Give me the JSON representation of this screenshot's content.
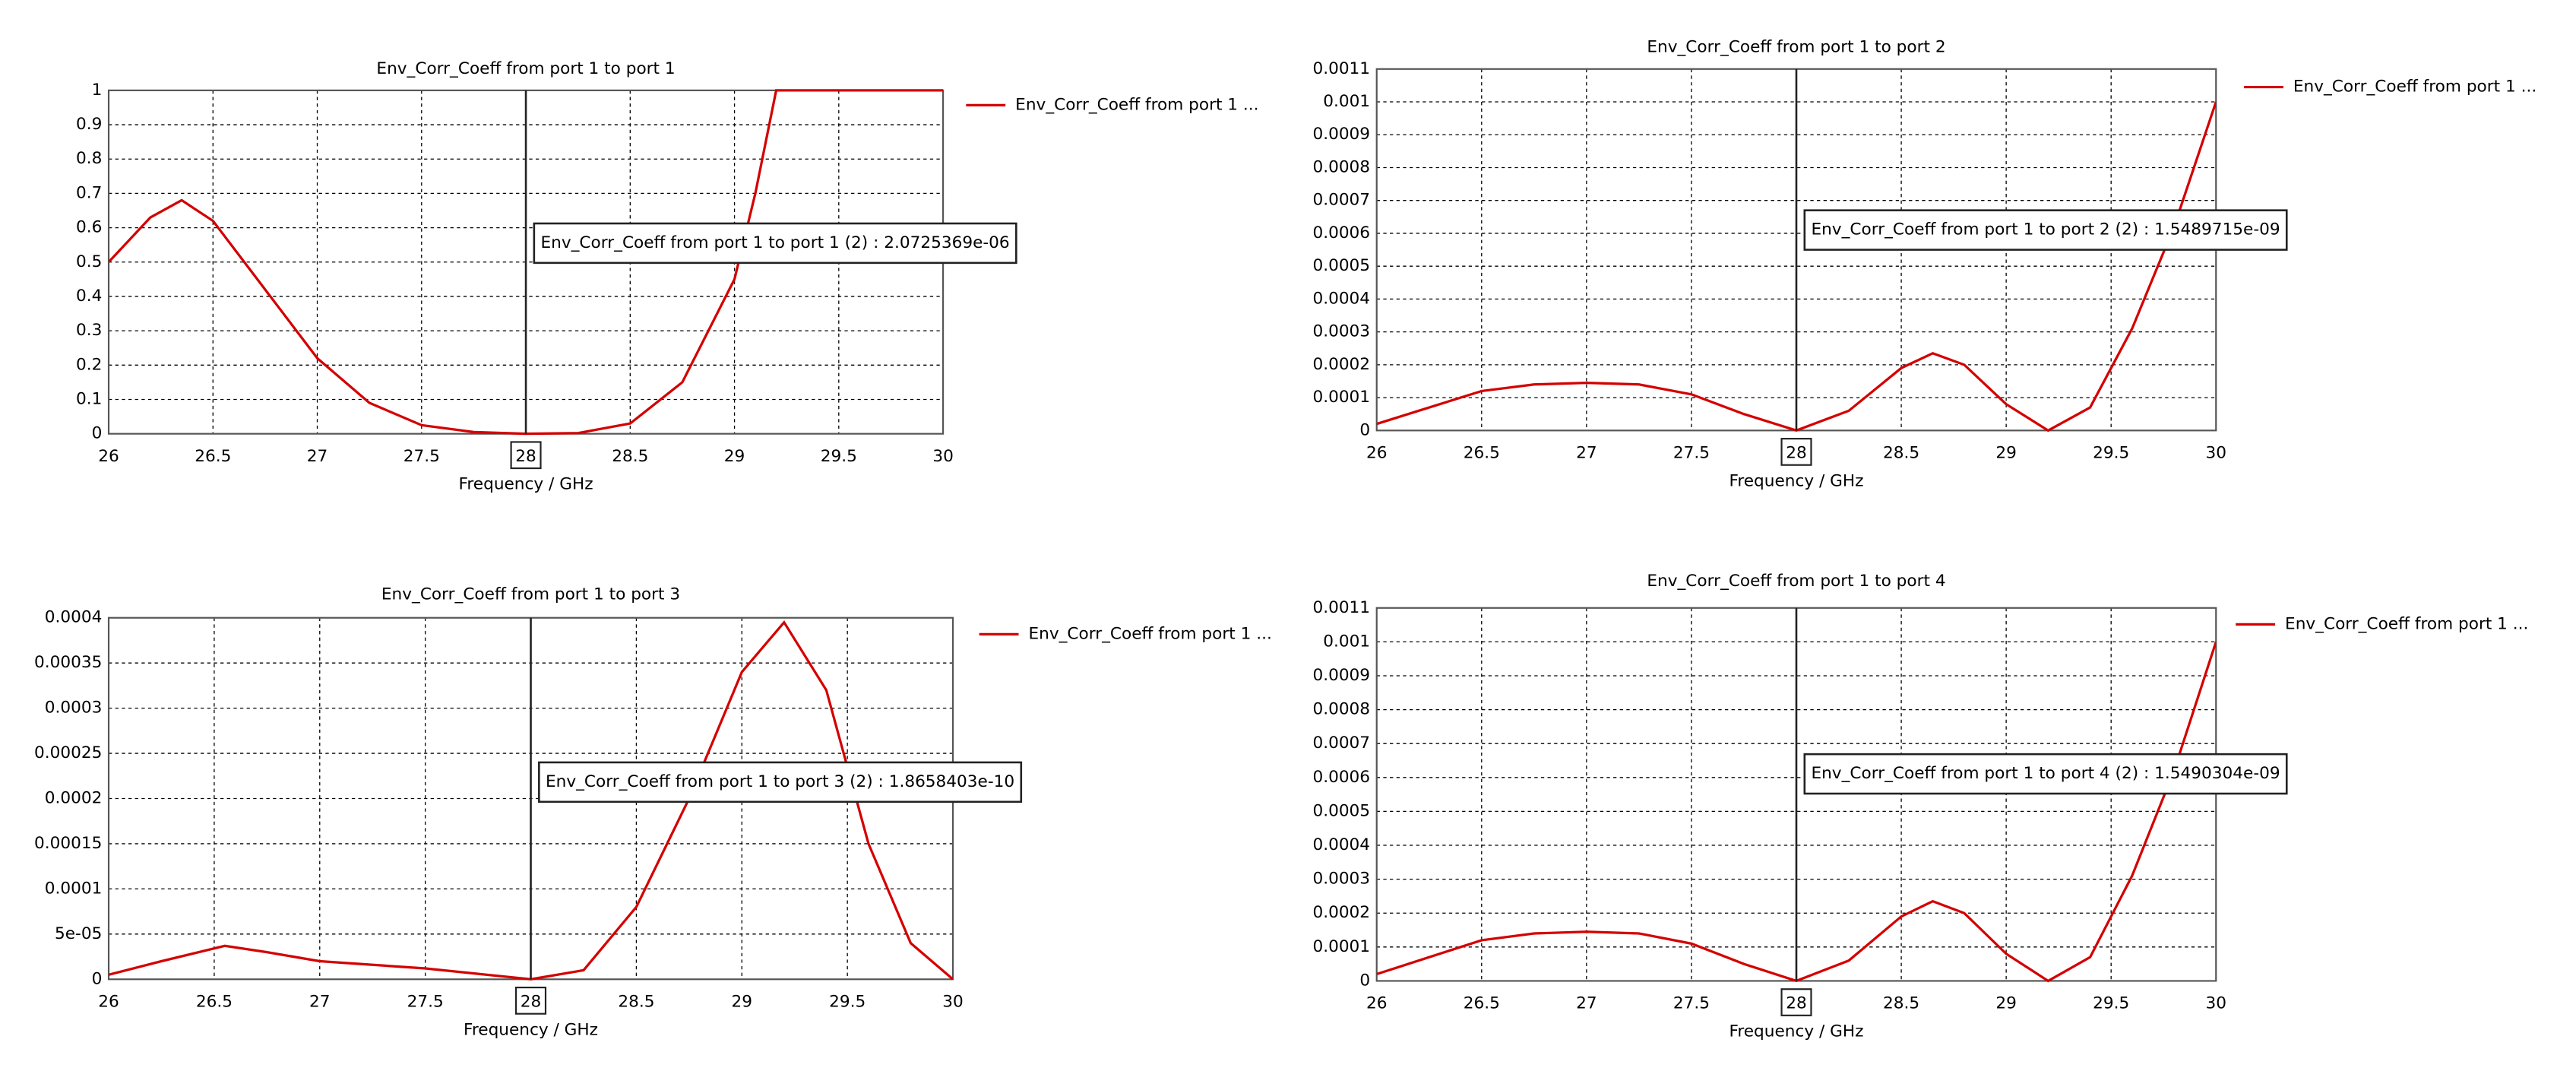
{
  "chart_data": [
    {
      "type": "line",
      "title": "Env_Corr_Coeff from port 1 to port 1",
      "x_label": "Frequency / GHz",
      "grid": true,
      "xlim": [
        26,
        30
      ],
      "xticks": [
        26,
        26.5,
        27,
        27.5,
        28,
        28.5,
        29,
        29.5,
        30
      ],
      "ylim": [
        0,
        1
      ],
      "yticks": [
        0,
        0.1,
        0.2,
        0.3,
        0.4,
        0.5,
        0.6,
        0.7,
        0.8,
        0.9,
        1
      ],
      "x": [
        26,
        26.2,
        26.35,
        26.5,
        26.75,
        27,
        27.25,
        27.5,
        27.75,
        28,
        28.25,
        28.5,
        28.75,
        29,
        29.1,
        29.2,
        29.5,
        30
      ],
      "series": [
        {
          "name": "Env_Corr_Coeff from port 1 ...",
          "color": "#d40000",
          "values": [
            0.5,
            0.63,
            0.68,
            0.62,
            0.42,
            0.22,
            0.09,
            0.025,
            0.005,
            0,
            0.002,
            0.03,
            0.15,
            0.45,
            0.7,
            1,
            1,
            1
          ]
        }
      ],
      "marker_x": 28,
      "annotation": "Env_Corr_Coeff from port 1 to port 1 (2) : 2.0725369e-06"
    },
    {
      "type": "line",
      "title": "Env_Corr_Coeff from port 1 to port 2",
      "x_label": "Frequency / GHz",
      "grid": true,
      "xlim": [
        26,
        30
      ],
      "xticks": [
        26,
        26.5,
        27,
        27.5,
        28,
        28.5,
        29,
        29.5,
        30
      ],
      "ylim": [
        0,
        0.0011
      ],
      "yticks": [
        0,
        0.0001,
        0.0002,
        0.0003,
        0.0004,
        0.0005,
        0.0006,
        0.0007,
        0.0008,
        0.0009,
        0.001,
        0.0011
      ],
      "x": [
        26,
        26.25,
        26.5,
        26.75,
        27,
        27.25,
        27.5,
        27.75,
        28,
        28.25,
        28.5,
        28.65,
        28.8,
        29,
        29.2,
        29.4,
        29.6,
        29.8,
        30
      ],
      "series": [
        {
          "name": "Env_Corr_Coeff from port 1 ...",
          "color": "#d40000",
          "values": [
            2e-05,
            7e-05,
            0.00012,
            0.00014,
            0.000145,
            0.00014,
            0.00011,
            5e-05,
            0,
            6e-05,
            0.00019,
            0.000235,
            0.0002,
            8e-05,
            0,
            7e-05,
            0.00031,
            0.00062,
            0.001
          ]
        }
      ],
      "marker_x": 28,
      "annotation": "Env_Corr_Coeff from port 1 to port 2 (2) : 1.5489715e-09"
    },
    {
      "type": "line",
      "title": "Env_Corr_Coeff from port 1 to port 3",
      "x_label": "Frequency / GHz",
      "grid": true,
      "xlim": [
        26,
        30
      ],
      "xticks": [
        26,
        26.5,
        27,
        27.5,
        28,
        28.5,
        29,
        29.5,
        30
      ],
      "ylim": [
        0,
        0.0004
      ],
      "yticks": [
        0,
        {
          "value": 5e-05,
          "label": "5e-05"
        },
        0.0001,
        0.00015,
        0.0002,
        0.00025,
        0.0003,
        0.00035,
        0.0004
      ],
      "x": [
        26,
        26.25,
        26.55,
        26.75,
        27,
        27.5,
        27.75,
        28,
        28.25,
        28.5,
        28.75,
        29,
        29.2,
        29.4,
        29.6,
        29.8,
        30
      ],
      "series": [
        {
          "name": "Env_Corr_Coeff from port 1 ...",
          "color": "#d40000",
          "values": [
            5e-06,
            2e-05,
            3.7e-05,
            3e-05,
            2e-05,
            1.2e-05,
            6e-06,
            0,
            1e-05,
            8e-05,
            0.0002,
            0.00034,
            0.000395,
            0.00032,
            0.00015,
            4e-05,
            0
          ]
        }
      ],
      "marker_x": 28,
      "annotation": "Env_Corr_Coeff from port 1 to port 3 (2) : 1.8658403e-10"
    },
    {
      "type": "line",
      "title": "Env_Corr_Coeff from port 1 to port 4",
      "x_label": "Frequency / GHz",
      "grid": true,
      "xlim": [
        26,
        30
      ],
      "xticks": [
        26,
        26.5,
        27,
        27.5,
        28,
        28.5,
        29,
        29.5,
        30
      ],
      "ylim": [
        0,
        0.0011
      ],
      "yticks": [
        0,
        0.0001,
        0.0002,
        0.0003,
        0.0004,
        0.0005,
        0.0006,
        0.0007,
        0.0008,
        0.0009,
        0.001,
        0.0011
      ],
      "x": [
        26,
        26.25,
        26.5,
        26.75,
        27,
        27.25,
        27.5,
        27.75,
        28,
        28.25,
        28.5,
        28.65,
        28.8,
        29,
        29.2,
        29.4,
        29.6,
        29.8,
        30
      ],
      "series": [
        {
          "name": "Env_Corr_Coeff from port 1 ...",
          "color": "#d40000",
          "values": [
            2e-05,
            7e-05,
            0.00012,
            0.00014,
            0.000145,
            0.00014,
            0.00011,
            5e-05,
            0,
            6e-05,
            0.00019,
            0.000235,
            0.0002,
            8e-05,
            0,
            7e-05,
            0.00031,
            0.00062,
            0.001
          ]
        }
      ],
      "marker_x": 28,
      "annotation": "Env_Corr_Coeff from port 1 to port 4 (2) : 1.5490304e-09"
    }
  ]
}
